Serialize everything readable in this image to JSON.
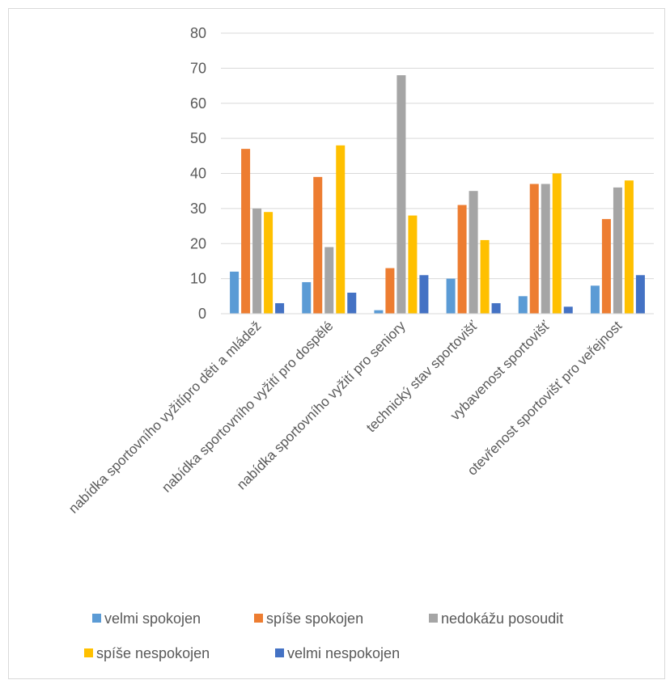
{
  "chart_data": {
    "type": "bar",
    "title": "",
    "xlabel": "",
    "ylabel": "",
    "ylim": [
      0,
      80
    ],
    "yticks": [
      0,
      10,
      20,
      30,
      40,
      50,
      60,
      70,
      80
    ],
    "grid": true,
    "legend_position": "bottom",
    "categories": [
      "nabídka sportovního vyžitípro děti a mládež",
      "nabídka sportovního vyžití pro dospělé",
      "nabídka sportovního vyžití pro seniory",
      "technický stav sportovišť",
      "vybavenost sportovišť",
      "otevřenost sportovišť pro veřejnost"
    ],
    "series": [
      {
        "name": "velmi spokojen",
        "color": "#5B9BD5",
        "values": [
          12,
          9,
          1,
          10,
          5,
          8
        ]
      },
      {
        "name": "spíše spokojen",
        "color": "#ED7D31",
        "values": [
          47,
          39,
          13,
          31,
          37,
          27
        ]
      },
      {
        "name": "nedokážu posoudit",
        "color": "#A5A5A5",
        "values": [
          30,
          19,
          68,
          35,
          37,
          36
        ]
      },
      {
        "name": "spíše nespokojen",
        "color": "#FFC000",
        "values": [
          29,
          48,
          28,
          21,
          40,
          38
        ]
      },
      {
        "name": "velmi nespokojen",
        "color": "#4472C4",
        "values": [
          3,
          6,
          11,
          3,
          2,
          11
        ]
      }
    ]
  }
}
